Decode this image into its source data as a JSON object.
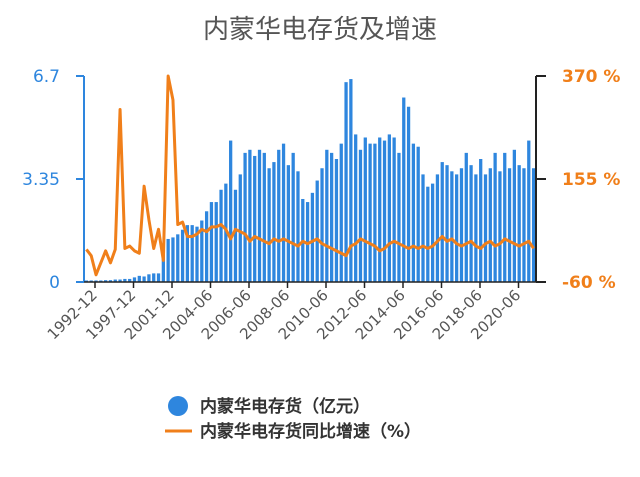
{
  "chart_data": {
    "type": "bar+line",
    "title": "内蒙华电存货及增速",
    "x_tick_labels": [
      "1992-12",
      "1997-12",
      "2001-12",
      "2004-06",
      "2006-06",
      "2008-06",
      "2010-06",
      "2012-06",
      "2014-06",
      "2016-06",
      "2018-06",
      "2020-06"
    ],
    "left_axis": {
      "ticks": [
        "6.7",
        "3.35",
        "0"
      ],
      "ylim": [
        0,
        6.7
      ],
      "unit": "亿元"
    },
    "right_axis": {
      "ticks": [
        "370 %",
        "155 %",
        "-60 %"
      ],
      "ylim": [
        -60,
        370
      ],
      "unit": "%"
    },
    "legend": {
      "position": "bottom"
    },
    "series": [
      {
        "name": "内蒙华电存货（亿元）",
        "kind": "bar",
        "color": "#2e86de",
        "values": [
          0.05,
          0.05,
          0.05,
          0.05,
          0.06,
          0.06,
          0.08,
          0.08,
          0.1,
          0.1,
          0.15,
          0.2,
          0.18,
          0.25,
          0.28,
          0.28,
          1.0,
          1.4,
          1.45,
          1.55,
          1.7,
          1.85,
          1.85,
          1.8,
          2.0,
          2.3,
          2.6,
          2.6,
          3.0,
          3.2,
          4.6,
          3.0,
          3.5,
          4.2,
          4.3,
          4.1,
          4.3,
          4.2,
          3.7,
          3.9,
          4.3,
          4.5,
          3.8,
          4.2,
          3.6,
          2.7,
          2.6,
          2.9,
          3.3,
          3.7,
          4.3,
          4.2,
          4.0,
          4.5,
          6.5,
          6.6,
          4.8,
          4.3,
          4.7,
          4.5,
          4.5,
          4.7,
          4.6,
          4.8,
          4.7,
          4.2,
          6.0,
          5.7,
          4.5,
          4.4,
          3.5,
          3.1,
          3.2,
          3.5,
          3.9,
          3.8,
          3.6,
          3.5,
          3.7,
          4.2,
          3.8,
          3.5,
          4.0,
          3.5,
          3.7,
          4.2,
          3.6,
          4.2,
          3.7,
          4.3,
          3.8,
          3.7,
          4.6,
          3.7
        ]
      },
      {
        "name": "内蒙华电存货同比增速（%）",
        "kind": "line",
        "color": "#f07f1a",
        "values": [
          8,
          -5,
          -45,
          -20,
          5,
          -20,
          8,
          300,
          10,
          15,
          5,
          0,
          140,
          70,
          10,
          50,
          -15,
          370,
          320,
          60,
          65,
          35,
          35,
          40,
          50,
          45,
          55,
          55,
          60,
          50,
          30,
          50,
          45,
          40,
          25,
          35,
          30,
          25,
          20,
          30,
          25,
          30,
          25,
          20,
          15,
          25,
          20,
          25,
          30,
          20,
          15,
          10,
          5,
          0,
          -5,
          15,
          20,
          30,
          25,
          20,
          15,
          5,
          10,
          20,
          25,
          20,
          15,
          10,
          15,
          10,
          15,
          10,
          15,
          25,
          35,
          25,
          30,
          20,
          15,
          20,
          25,
          15,
          10,
          20,
          25,
          15,
          20,
          30,
          25,
          20,
          15,
          20,
          25,
          10
        ]
      }
    ]
  }
}
